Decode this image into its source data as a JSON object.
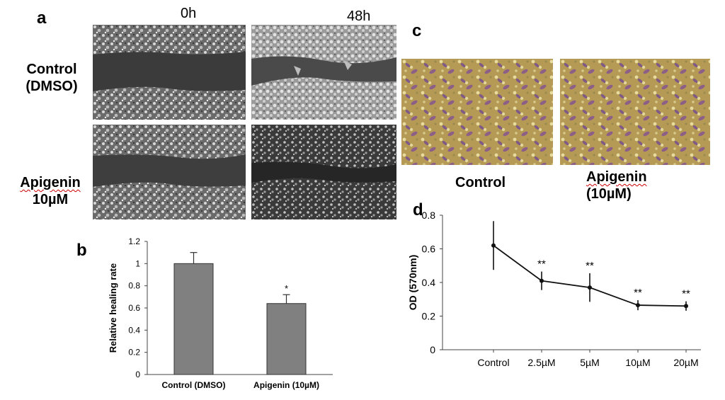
{
  "panels": {
    "a": {
      "letter": "a",
      "col_headers": [
        "0h",
        "48h"
      ],
      "rows": [
        {
          "label_lines": [
            "Control",
            "(DMSO)"
          ]
        },
        {
          "label_lines": [
            "Apigenin",
            "10µM"
          ]
        }
      ]
    },
    "c": {
      "letter": "c",
      "captions": [
        {
          "lines": [
            "Control"
          ]
        },
        {
          "lines": [
            "Apigenin",
            "(10µM)"
          ]
        }
      ]
    }
  },
  "chart_data": [
    {
      "panel": "b",
      "type": "bar",
      "categories": [
        "Control (DMSO)",
        "Apigenin (10µM)"
      ],
      "values": [
        1.0,
        0.64
      ],
      "errors": [
        0.1,
        0.08
      ],
      "annotations": [
        "",
        "*"
      ],
      "xlabel": "",
      "ylabel": "Relative healing rate",
      "ylim": [
        0,
        1.2
      ],
      "yticks": [
        "0",
        "0.2",
        "0.4",
        "0.6",
        "0.8",
        "1",
        "1.2"
      ],
      "bar_color": "#808080",
      "grid": false
    },
    {
      "panel": "d",
      "type": "line",
      "categories": [
        "Control",
        "2.5µM",
        "5µM",
        "10µM",
        "20µM"
      ],
      "values": [
        0.62,
        0.41,
        0.37,
        0.265,
        0.26
      ],
      "errors": [
        0.145,
        0.055,
        0.085,
        0.03,
        0.028
      ],
      "annotations": [
        "",
        "**",
        "**",
        "**",
        "**"
      ],
      "xlabel": "",
      "ylabel": "OD (570nm)",
      "ylim": [
        0,
        0.8
      ],
      "yticks": [
        "0",
        "0.2",
        "0.4",
        "0.6",
        "0.8"
      ],
      "grid": false
    }
  ]
}
